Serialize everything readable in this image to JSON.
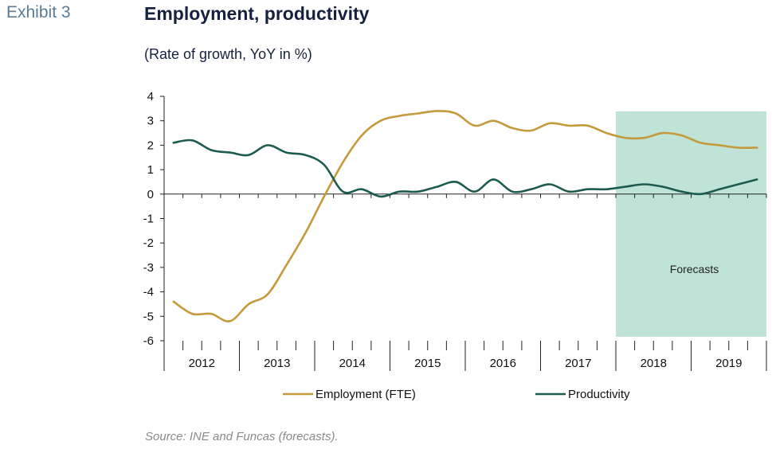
{
  "exhibit_label": "Exhibit 3",
  "title": "Employment, productivity",
  "subtitle": "(Rate of growth, YoY in %)",
  "source": "Source: INE and Funcas (forecasts).",
  "forecast_label": "Forecasts",
  "colors": {
    "employment": "#c49a3c",
    "productivity": "#1e5b4f",
    "forecast_band": "#bfe3d7"
  },
  "chart_data": {
    "type": "line",
    "years": [
      "2012",
      "2013",
      "2014",
      "2015",
      "2016",
      "2017",
      "2018",
      "2019"
    ],
    "x": [
      "2012Q1",
      "2012Q2",
      "2012Q3",
      "2012Q4",
      "2013Q1",
      "2013Q2",
      "2013Q3",
      "2013Q4",
      "2014Q1",
      "2014Q2",
      "2014Q3",
      "2014Q4",
      "2015Q1",
      "2015Q2",
      "2015Q3",
      "2015Q4",
      "2016Q1",
      "2016Q2",
      "2016Q3",
      "2016Q4",
      "2017Q1",
      "2017Q2",
      "2017Q3",
      "2017Q4",
      "2018Q1",
      "2018Q2",
      "2018Q3",
      "2018Q4",
      "2019Q1",
      "2019Q2",
      "2019Q3",
      "2019Q4"
    ],
    "series": [
      {
        "name": "Employment (FTE)",
        "values": [
          -4.4,
          -4.9,
          -4.9,
          -5.2,
          -4.5,
          -4.1,
          -2.9,
          -1.6,
          -0.1,
          1.3,
          2.4,
          3.0,
          3.2,
          3.3,
          3.4,
          3.3,
          2.8,
          3.0,
          2.7,
          2.6,
          2.9,
          2.8,
          2.8,
          2.5,
          2.3,
          2.3,
          2.5,
          2.4,
          2.1,
          2.0,
          1.9,
          1.9
        ]
      },
      {
        "name": "Productivity",
        "values": [
          2.1,
          2.2,
          1.8,
          1.7,
          1.6,
          2.0,
          1.7,
          1.6,
          1.2,
          0.1,
          0.2,
          -0.1,
          0.1,
          0.1,
          0.3,
          0.5,
          0.1,
          0.6,
          0.1,
          0.2,
          0.4,
          0.1,
          0.2,
          0.2,
          0.3,
          0.4,
          0.3,
          0.1,
          0.0,
          0.2,
          0.4,
          0.6
        ]
      }
    ],
    "ylim": [
      -6,
      4
    ],
    "yticks": [
      "4",
      "3",
      "2",
      "1",
      "0",
      "-1",
      "-2",
      "-3",
      "-4",
      "-5",
      "-6"
    ],
    "forecast_start": "2018Q1",
    "legend_position": "bottom",
    "grid": false
  }
}
